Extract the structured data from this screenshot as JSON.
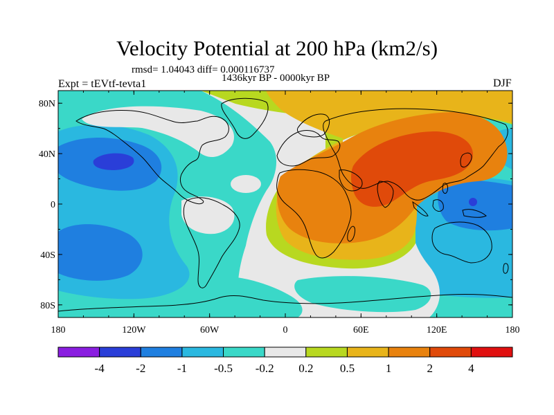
{
  "figure": {
    "title": "Velocity Potential at 200 hPa (km2/s)",
    "stats": "rmsd= 1.04043 diff= 0.000116737",
    "period": "1436kyr BP - 0000kyr BP",
    "experiment": "Expt = tEVtf-tevta1",
    "season": "DJF"
  },
  "axes": {
    "lat_ticks": [
      "80N",
      "40N",
      "0",
      "40S",
      "80S"
    ],
    "lon_ticks": [
      "180",
      "120W",
      "60W",
      "0",
      "60E",
      "120E",
      "180"
    ]
  },
  "colorbar": {
    "labels": [
      "-4",
      "-2",
      "-1",
      "-0.5",
      "-0.2",
      "0.2",
      "0.5",
      "1",
      "2",
      "4"
    ],
    "colors": [
      "#8a1ee0",
      "#2a3ed8",
      "#1f7fe0",
      "#2ab8e0",
      "#3ad8c8",
      "#e8e8e8",
      "#b8d820",
      "#e8b41a",
      "#e8820e",
      "#e04a0a",
      "#e01010"
    ]
  },
  "palette": {
    "ocean_positive_strong": "#e8820e",
    "ocean_positive": "#e8b41a",
    "neutral": "#e8e8e8",
    "negative_weak": "#3ad8c8",
    "negative": "#2ab8e0"
  }
}
